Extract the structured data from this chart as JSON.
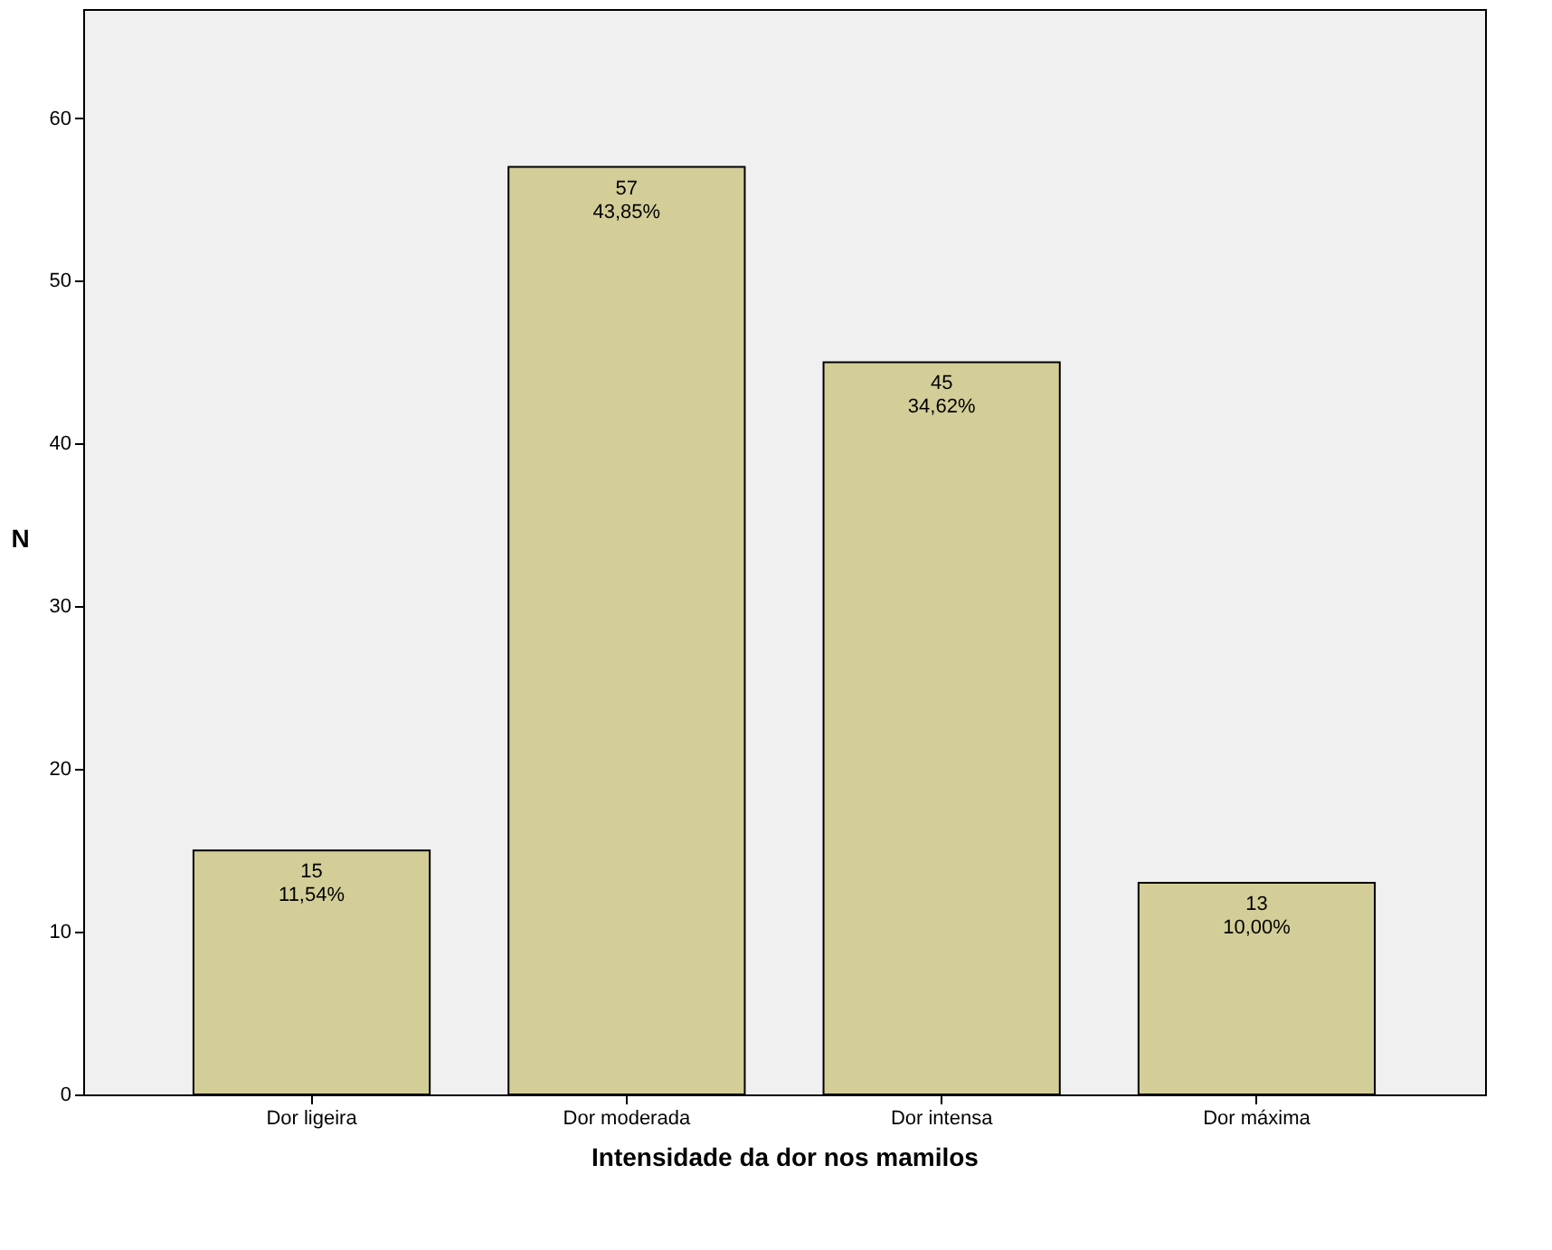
{
  "chart_data": {
    "type": "bar",
    "xlabel": "Intensidade da dor nos mamilos",
    "ylabel": "N",
    "categories": [
      "Dor ligeira",
      "Dor moderada",
      "Dor intensa",
      "Dor máxima"
    ],
    "values": [
      15,
      57,
      45,
      13
    ],
    "value_labels": [
      "15\n11,54%",
      "57\n43,85%",
      "45\n34,62%",
      "13\n10,00%"
    ],
    "color": "#d3ce98",
    "ylim": [
      0,
      66.7
    ],
    "yticks": [
      0,
      10,
      20,
      30,
      40,
      50,
      60
    ],
    "grid": false
  }
}
